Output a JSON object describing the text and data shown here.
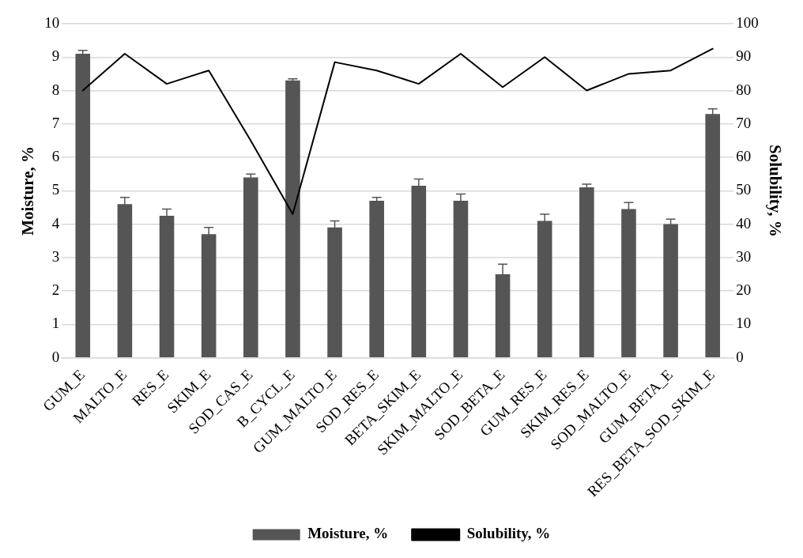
{
  "chart_data": {
    "type": "bar",
    "ylabel": "Moisture, %",
    "y2label": "Solubility, %",
    "categories": [
      "GUM_E",
      "MALTO_E",
      "RES_E",
      "SKIM_E",
      "SOD_CAS_E",
      "B_CYCL_E",
      "GUM_MALTO_E",
      "SOD_RES_E",
      "BETA_SKIM_E",
      "SKIM_MALTO_E",
      "SOD_BETA_E",
      "GUM_RES_E",
      "SKIM_RES_E",
      "SOD_MALTO_E",
      "GUM_BETA_E",
      "RES_BETA_SOD_SKIM_E"
    ],
    "series": [
      {
        "name": "Moisture, %",
        "color": "#555555",
        "values": [
          9.1,
          4.6,
          4.25,
          3.7,
          5.4,
          8.3,
          3.9,
          4.7,
          5.15,
          4.7,
          2.5,
          4.1,
          5.1,
          4.45,
          4.0,
          7.3
        ],
        "errors": [
          0.1,
          0.2,
          0.2,
          0.2,
          0.1,
          0.05,
          0.2,
          0.1,
          0.2,
          0.2,
          0.3,
          0.2,
          0.1,
          0.2,
          0.15,
          0.15
        ]
      },
      {
        "name": "Solubility, %",
        "type": "line",
        "axis": "y2",
        "color": "#000000",
        "values": [
          80,
          91,
          82,
          86,
          65,
          43,
          88.5,
          86,
          82,
          91,
          81,
          90,
          80,
          85,
          86,
          92.5
        ]
      }
    ],
    "ylim": [
      0,
      10
    ],
    "yticks": [
      0,
      1,
      2,
      3,
      4,
      5,
      6,
      7,
      8,
      9,
      10
    ],
    "y2lim": [
      0,
      100
    ],
    "y2ticks": [
      0,
      10,
      20,
      30,
      40,
      50,
      60,
      70,
      80,
      90,
      100
    ],
    "grid": "y",
    "legend": "bottom",
    "marker": "none",
    "line_style": "solid"
  }
}
